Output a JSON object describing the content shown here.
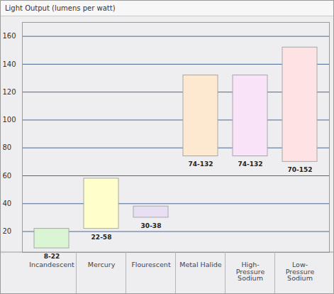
{
  "chart_data": {
    "type": "floating_bar",
    "title": "Light Output (lumens per watt)",
    "categories": [
      "Incandescent",
      "Mercury",
      "Flourescent",
      "Metal Halide",
      "High-Pressure Sodium",
      "Low-Pressure Sodium"
    ],
    "values": [
      [
        8,
        22
      ],
      [
        22,
        58
      ],
      [
        30,
        38
      ],
      [
        74,
        132
      ],
      [
        74,
        132
      ],
      [
        70,
        152
      ]
    ],
    "value_labels": [
      "8-22",
      "22-58",
      "30-38",
      "74-132",
      "74-132",
      "70-152"
    ],
    "colors": [
      "#d9f5d3",
      "#ffffcc",
      "#e8e0f2",
      "#fde8d0",
      "#f8e3f8",
      "#fde3e3"
    ],
    "ylim": [
      5,
      170
    ],
    "yticks": [
      20,
      40,
      60,
      80,
      100,
      120,
      140,
      160
    ],
    "grid": true,
    "data_labels": true
  }
}
